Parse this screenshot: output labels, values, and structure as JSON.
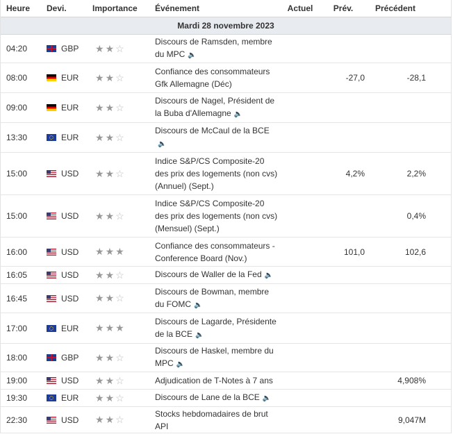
{
  "headers": {
    "time": "Heure",
    "currency": "Devi.",
    "importance": "Importance",
    "event": "Événement",
    "actual": "Actuel",
    "forecast": "Prév.",
    "previous": "Précédent"
  },
  "day_label": "Mardi 28 novembre 2023",
  "events": [
    {
      "time": "04:20",
      "currency": "GBP",
      "flag": "gbp",
      "importance": 2,
      "event": "Discours de Ramsden, membre du MPC",
      "speech": true,
      "actual": "",
      "forecast": "",
      "previous": ""
    },
    {
      "time": "08:00",
      "currency": "EUR",
      "flag": "de",
      "importance": 2,
      "event": "Confiance des consommateurs Gfk Allemagne (Déc)",
      "speech": false,
      "actual": "",
      "forecast": "-27,0",
      "previous": "-28,1"
    },
    {
      "time": "09:00",
      "currency": "EUR",
      "flag": "de",
      "importance": 2,
      "event": "Discours de Nagel, Président de la Buba d'Allemagne",
      "speech": true,
      "actual": "",
      "forecast": "",
      "previous": ""
    },
    {
      "time": "13:30",
      "currency": "EUR",
      "flag": "eur",
      "importance": 2,
      "event": "Discours de McCaul de la BCE",
      "speech": true,
      "actual": "",
      "forecast": "",
      "previous": ""
    },
    {
      "time": "15:00",
      "currency": "USD",
      "flag": "us",
      "importance": 2,
      "event": "Indice S&P/CS Composite-20 des prix des logements (non cvs) (Annuel) (Sept.)",
      "speech": false,
      "actual": "",
      "forecast": "4,2%",
      "previous": "2,2%"
    },
    {
      "time": "15:00",
      "currency": "USD",
      "flag": "us",
      "importance": 2,
      "event": "Indice S&P/CS Composite-20 des prix des logements (non cvs) (Mensuel) (Sept.)",
      "speech": false,
      "actual": "",
      "forecast": "",
      "previous": "0,4%"
    },
    {
      "time": "16:00",
      "currency": "USD",
      "flag": "us",
      "importance": 3,
      "event": "Confiance des consommateurs - Conference Board (Nov.)",
      "speech": false,
      "actual": "",
      "forecast": "101,0",
      "previous": "102,6"
    },
    {
      "time": "16:05",
      "currency": "USD",
      "flag": "us",
      "importance": 2,
      "event": "Discours de Waller de la Fed",
      "speech": true,
      "actual": "",
      "forecast": "",
      "previous": ""
    },
    {
      "time": "16:45",
      "currency": "USD",
      "flag": "us",
      "importance": 2,
      "event": "Discours de Bowman, membre du FOMC",
      "speech": true,
      "actual": "",
      "forecast": "",
      "previous": ""
    },
    {
      "time": "17:00",
      "currency": "EUR",
      "flag": "eur",
      "importance": 3,
      "event": "Discours de Lagarde, Présidente de la BCE",
      "speech": true,
      "actual": "",
      "forecast": "",
      "previous": ""
    },
    {
      "time": "18:00",
      "currency": "GBP",
      "flag": "gbp",
      "importance": 2,
      "event": "Discours de Haskel, membre du MPC",
      "speech": true,
      "actual": "",
      "forecast": "",
      "previous": ""
    },
    {
      "time": "19:00",
      "currency": "USD",
      "flag": "us",
      "importance": 2,
      "event": "Adjudication de T-Notes à 7 ans",
      "speech": false,
      "actual": "",
      "forecast": "",
      "previous": "4,908%"
    },
    {
      "time": "19:30",
      "currency": "EUR",
      "flag": "eur",
      "importance": 2,
      "event": "Discours de Lane de la BCE",
      "speech": true,
      "actual": "",
      "forecast": "",
      "previous": ""
    },
    {
      "time": "22:30",
      "currency": "USD",
      "flag": "us",
      "importance": 2,
      "event": "Stocks hebdomadaires de brut API",
      "speech": false,
      "actual": "",
      "forecast": "",
      "previous": "9,047M"
    }
  ]
}
